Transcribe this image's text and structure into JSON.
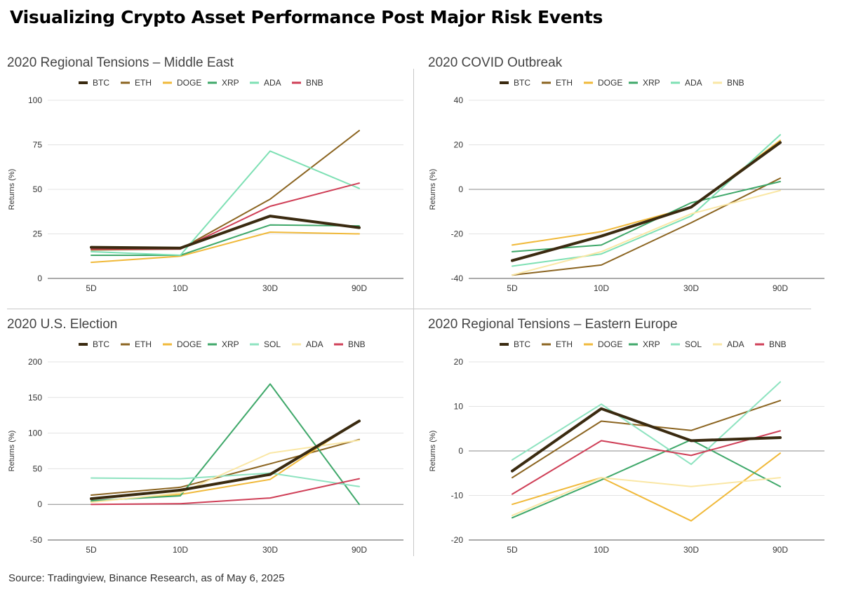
{
  "title": "Visualizing Crypto Asset Performance Post Major Risk Events",
  "source": "Source: Tradingview, Binance Research, as of May 6, 2025",
  "colors": {
    "BTC": "#3a2a10",
    "ETH": "#8b6420",
    "DOGE": "#f0b93a",
    "XRP": "#3fa86a",
    "ADA": "#7ee0b4",
    "BNB": "#cf3f57",
    "SOL": "#8ee3c0",
    "axis": "#555555",
    "grid": "#e3e3e3",
    "zero_line": "#8a8a8a"
  },
  "chart_data": [
    {
      "type": "line",
      "title": "2020 Regional Tensions – Middle East",
      "ylabel": "Returns (%)",
      "categories": [
        "5D",
        "10D",
        "30D",
        "90D"
      ],
      "ylim": [
        0,
        100
      ],
      "yticks": [
        0,
        25,
        50,
        75,
        100
      ],
      "legend": "top",
      "grid": true,
      "series": [
        {
          "name": "BTC",
          "color": "#3a2a10",
          "values": [
            17.5,
            17,
            35,
            28.5
          ]
        },
        {
          "name": "ETH",
          "color": "#8b6420",
          "values": [
            16,
            16.5,
            44.5,
            83
          ]
        },
        {
          "name": "DOGE",
          "color": "#f0b93a",
          "values": [
            9,
            12.5,
            26,
            25
          ]
        },
        {
          "name": "XRP",
          "color": "#3fa86a",
          "values": [
            13,
            13,
            30,
            29.5
          ]
        },
        {
          "name": "ADA",
          "color": "#7ee0b4",
          "values": [
            15,
            13,
            71.5,
            50.5
          ]
        },
        {
          "name": "BNB",
          "color": "#cf3f57",
          "values": [
            16.5,
            16.5,
            40.5,
            53.5
          ]
        }
      ]
    },
    {
      "type": "line",
      "title": "2020 COVID Outbreak",
      "ylabel": "Returns (%)",
      "categories": [
        "5D",
        "10D",
        "30D",
        "90D"
      ],
      "ylim": [
        -40,
        40
      ],
      "yticks": [
        -40,
        -20,
        0,
        20,
        40
      ],
      "legend": "top",
      "grid": true,
      "series": [
        {
          "name": "BTC",
          "color": "#3a2a10",
          "values": [
            -32,
            -21,
            -8,
            21
          ]
        },
        {
          "name": "ETH",
          "color": "#8b6420",
          "values": [
            -38.5,
            -34,
            -15,
            5
          ]
        },
        {
          "name": "DOGE",
          "color": "#f0b93a",
          "values": [
            -25,
            -19,
            -8,
            22
          ]
        },
        {
          "name": "XRP",
          "color": "#3fa86a",
          "values": [
            -28,
            -25,
            -6,
            3.5
          ]
        },
        {
          "name": "ADA",
          "color": "#7ee0b4",
          "values": [
            -34.5,
            -29,
            -12,
            24.5
          ]
        },
        {
          "name": "BNB",
          "color": "#fae7a5",
          "values": [
            -38.5,
            -28,
            -11,
            -0.5
          ]
        }
      ]
    },
    {
      "type": "line",
      "title": "2020 U.S. Election",
      "ylabel": "Returns (%)",
      "categories": [
        "5D",
        "10D",
        "30D",
        "90D"
      ],
      "ylim": [
        -50,
        200
      ],
      "yticks": [
        -50,
        0,
        50,
        100,
        150,
        200
      ],
      "legend": "top",
      "grid": true,
      "series": [
        {
          "name": "BTC",
          "color": "#3a2a10",
          "values": [
            8,
            20,
            42,
            117
          ]
        },
        {
          "name": "ETH",
          "color": "#8b6420",
          "values": [
            13,
            24,
            57,
            91
          ]
        },
        {
          "name": "DOGE",
          "color": "#f0b93a",
          "values": [
            4,
            14,
            35,
            118
          ]
        },
        {
          "name": "XRP",
          "color": "#3fa86a",
          "values": [
            5,
            12,
            169,
            0
          ]
        },
        {
          "name": "SOL",
          "color": "#8ee3c0",
          "values": [
            37,
            36,
            44,
            25
          ]
        },
        {
          "name": "ADA",
          "color": "#fae7a5",
          "values": [
            3,
            16,
            72,
            90
          ]
        },
        {
          "name": "BNB",
          "color": "#cf3f57",
          "values": [
            0,
            1,
            9,
            36
          ]
        }
      ]
    },
    {
      "type": "line",
      "title": "2020 Regional Tensions – Eastern Europe",
      "ylabel": "Returns (%)",
      "categories": [
        "5D",
        "10D",
        "30D",
        "90D"
      ],
      "ylim": [
        -20,
        20
      ],
      "yticks": [
        -20,
        -10,
        0,
        10,
        20
      ],
      "legend": "top",
      "grid": true,
      "series": [
        {
          "name": "BTC",
          "color": "#3a2a10",
          "values": [
            -4.5,
            9.5,
            2.3,
            3
          ]
        },
        {
          "name": "ETH",
          "color": "#8b6420",
          "values": [
            -6,
            6.7,
            4.6,
            11.3
          ]
        },
        {
          "name": "DOGE",
          "color": "#f0b93a",
          "values": [
            -12,
            -6,
            -15.7,
            -0.5
          ]
        },
        {
          "name": "XRP",
          "color": "#3fa86a",
          "values": [
            -15,
            -6.5,
            2.5,
            -8
          ]
        },
        {
          "name": "SOL",
          "color": "#8ee3c0",
          "values": [
            -2,
            10.5,
            -3,
            15.5
          ]
        },
        {
          "name": "ADA",
          "color": "#fae7a5",
          "values": [
            -14.5,
            -6,
            -8,
            -6
          ]
        },
        {
          "name": "BNB",
          "color": "#cf3f57",
          "values": [
            -9.7,
            2.3,
            -1,
            4.5
          ]
        }
      ]
    }
  ]
}
